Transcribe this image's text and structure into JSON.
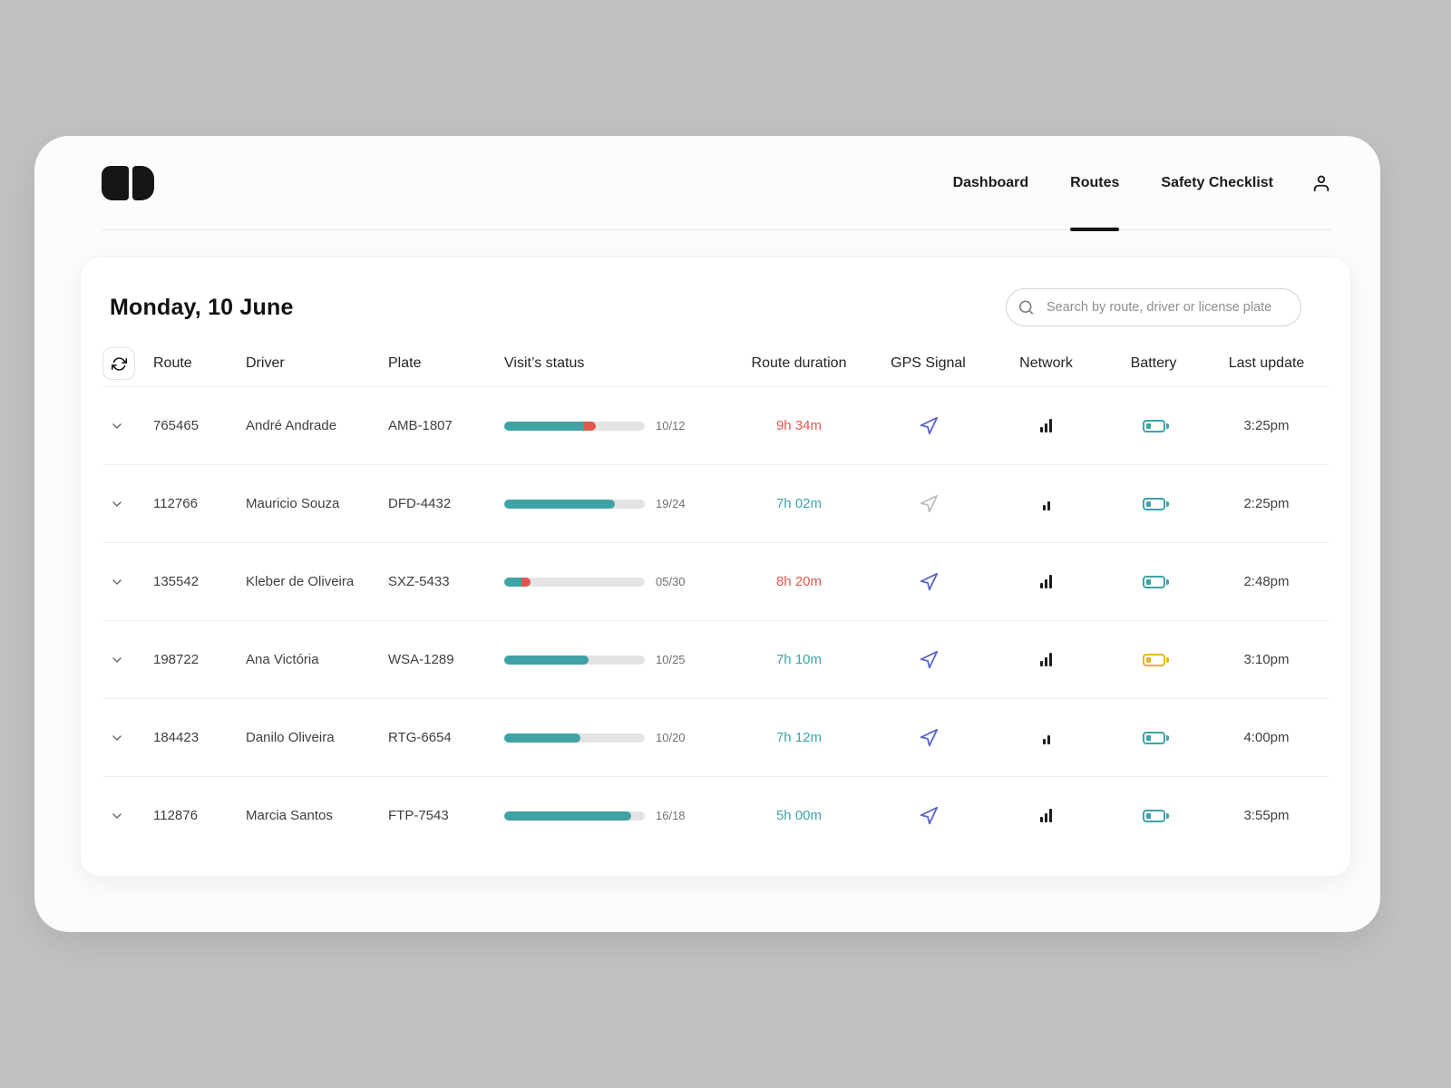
{
  "nav": {
    "items": [
      {
        "label": "Dashboard"
      },
      {
        "label": "Routes"
      },
      {
        "label": "Safety Checklist"
      }
    ]
  },
  "page": {
    "date_title": "Monday, 10 June",
    "search_placeholder": "Search by route, driver or license plate"
  },
  "table": {
    "headers": [
      "Route",
      "Driver",
      "Plate",
      "Visit’s status",
      "Route duration",
      "GPS Signal",
      "Network",
      "Battery",
      "Last update"
    ],
    "rows": [
      {
        "route": "765465",
        "driver": "André Andrade",
        "plate": "AMB-1807",
        "visits": "10/12",
        "progress_teal": 56,
        "progress_red": 9,
        "duration": "9h 34m",
        "duration_status": "late",
        "gps_active": true,
        "network_level": 3,
        "battery_status": "ok",
        "last_update": "3:25pm"
      },
      {
        "route": "112766",
        "driver": "Mauricio Souza",
        "plate": "DFD-4432",
        "visits": "19/24",
        "progress_teal": 79,
        "progress_red": 0,
        "duration": "7h 02m",
        "duration_status": "ontime",
        "gps_active": false,
        "network_level": 2,
        "battery_status": "ok",
        "last_update": "2:25pm"
      },
      {
        "route": "135542",
        "driver": "Kleber de Oliveira",
        "plate": "SXZ-5433",
        "visits": "05/30",
        "progress_teal": 12,
        "progress_red": 7,
        "duration": "8h 20m",
        "duration_status": "late",
        "gps_active": true,
        "network_level": 3,
        "battery_status": "ok",
        "last_update": "2:48pm"
      },
      {
        "route": "198722",
        "driver": "Ana Victória",
        "plate": "WSA-1289",
        "visits": "10/25",
        "progress_teal": 60,
        "progress_red": 0,
        "duration": "7h 10m",
        "duration_status": "ontime",
        "gps_active": true,
        "network_level": 3,
        "battery_status": "low",
        "last_update": "3:10pm"
      },
      {
        "route": "184423",
        "driver": "Danilo Oliveira",
        "plate": "RTG-6654",
        "visits": "10/20",
        "progress_teal": 54,
        "progress_red": 0,
        "duration": "7h 12m",
        "duration_status": "ontime",
        "gps_active": true,
        "network_level": 2,
        "battery_status": "ok",
        "last_update": "4:00pm"
      },
      {
        "route": "112876",
        "driver": "Marcia Santos",
        "plate": "FTP-7543",
        "visits": "16/18",
        "progress_teal": 90,
        "progress_red": 0,
        "duration": "5h 00m",
        "duration_status": "ontime",
        "gps_active": true,
        "network_level": 3,
        "battery_status": "ok",
        "last_update": "3:55pm"
      }
    ]
  },
  "colors": {
    "teal": "#3FA3A6",
    "red": "#DF5950",
    "warning_yellow": "#E5B42A",
    "gps_blue": "#5A66C4",
    "gps_inactive": "#BDBDBD"
  }
}
